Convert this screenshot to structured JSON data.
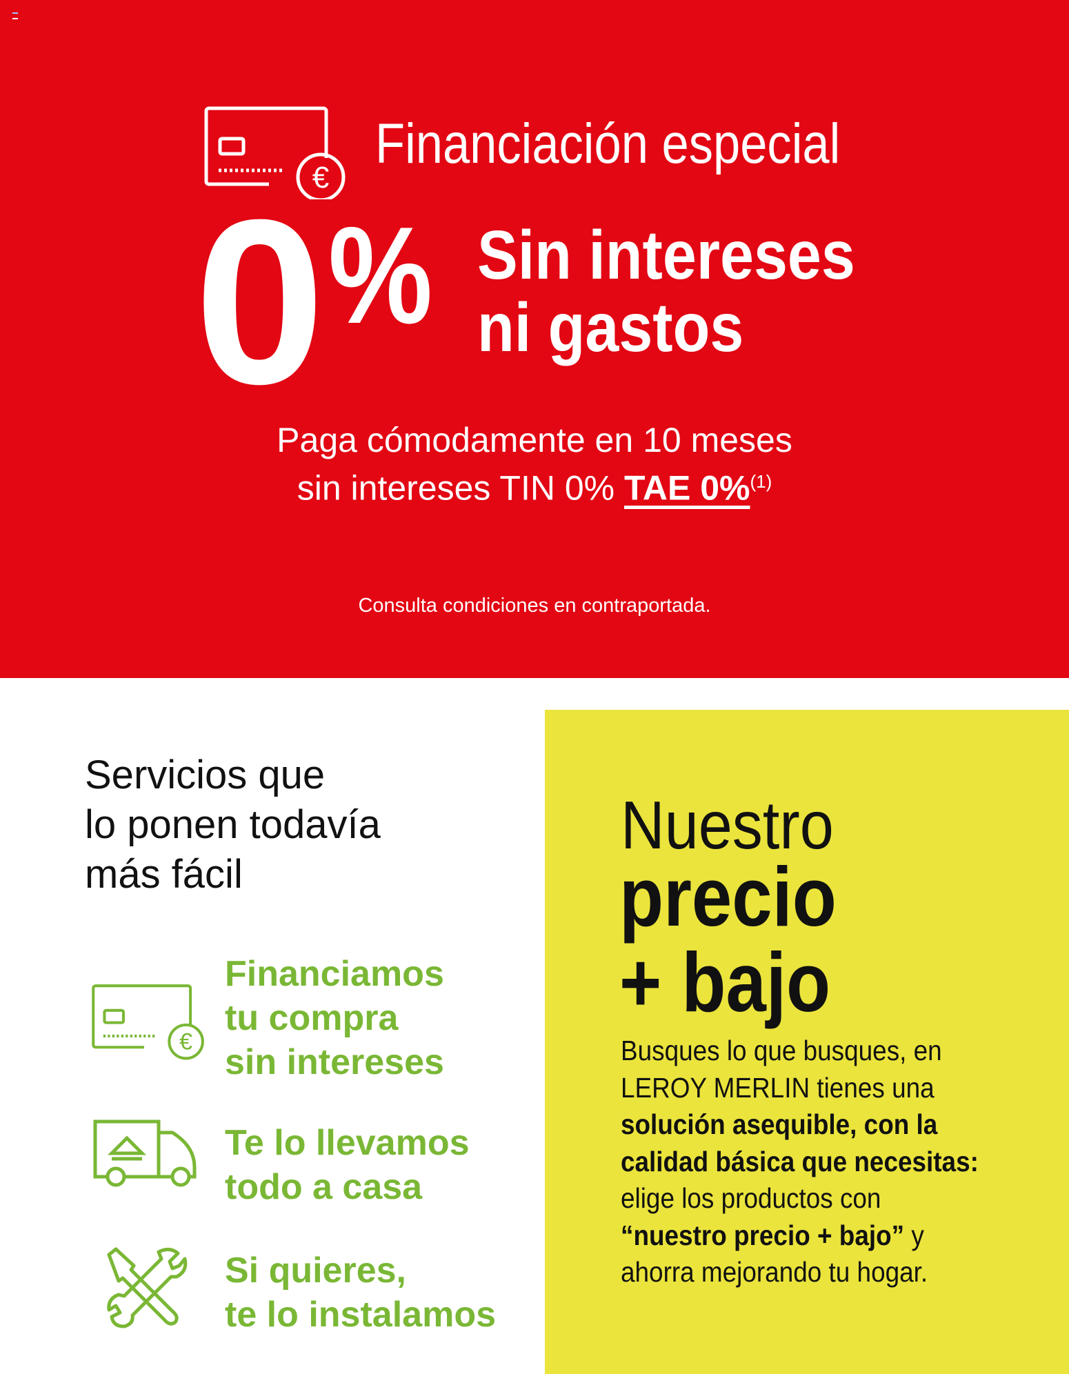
{
  "colors": {
    "red": "#e30613",
    "yellow": "#ebe43c",
    "green": "#7ab735",
    "text": "#111111"
  },
  "hero": {
    "icon": "credit-card-euro-icon",
    "title": "Financiación especial",
    "big_number": "0",
    "percent": "%",
    "headline_1": "Sin intereses",
    "headline_2": "ni gastos",
    "sub_1": "Paga cómodamente en 10 meses",
    "sub_2_prefix": "sin intereses TIN 0% ",
    "sub_2_tae": "TAE 0%",
    "sub_2_note": "(1)",
    "footnote": "Consulta condiciones en contraportada."
  },
  "services": {
    "title_lines": [
      "Servicios que",
      "lo ponen todavía",
      "más fácil"
    ],
    "items": [
      {
        "icon": "credit-card-euro-icon",
        "lines": [
          "Financiamos",
          "tu compra",
          "sin intereses"
        ]
      },
      {
        "icon": "delivery-truck-icon",
        "lines": [
          "Te lo llevamos",
          "todo a casa"
        ]
      },
      {
        "icon": "tools-wrench-screwdriver-icon",
        "lines": [
          "Si quieres,",
          "te lo instalamos"
        ]
      }
    ]
  },
  "promo": {
    "title_light": "Nuestro",
    "title_bold_1": "precio",
    "title_bold_2": "+ bajo",
    "body": {
      "l1": "Busques lo que busques, en",
      "l2": "LEROY MERLIN tienes una",
      "l3": "solución asequible, con la",
      "l4": "calidad básica que necesitas:",
      "l5": "elige los productos con",
      "l6_bold": "“nuestro precio + bajo”",
      "l6_rest": " y",
      "l7": "ahorra mejorando tu hogar."
    }
  }
}
